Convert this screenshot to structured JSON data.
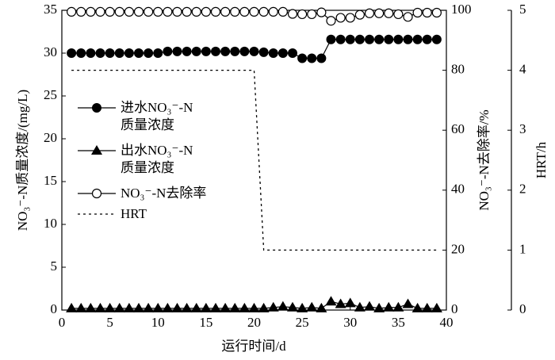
{
  "chart_data": {
    "type": "line",
    "x_label": "运行时间/d",
    "y_label": "NO₃⁻-N质量浓度/(mg/L)",
    "y2_label": "NO₃⁻-N去除率/%",
    "y3_label": "HRT/h",
    "x": [
      1,
      2,
      3,
      4,
      5,
      6,
      7,
      8,
      9,
      10,
      11,
      12,
      13,
      14,
      15,
      16,
      17,
      18,
      19,
      20,
      21,
      22,
      23,
      24,
      25,
      26,
      27,
      28,
      29,
      30,
      31,
      32,
      33,
      34,
      35,
      36,
      37,
      38,
      39
    ],
    "xlim": [
      0,
      40
    ],
    "xticks": [
      0,
      5,
      10,
      15,
      20,
      25,
      30,
      35,
      40
    ],
    "ylim": [
      0,
      35
    ],
    "yticks": [
      0,
      5,
      10,
      15,
      20,
      25,
      30,
      35
    ],
    "y2lim": [
      0,
      100
    ],
    "y2ticks": [
      0,
      20,
      40,
      60,
      80,
      100
    ],
    "y3lim": [
      0,
      5
    ],
    "y3ticks": [
      0,
      1,
      2,
      3,
      4,
      5
    ],
    "series": [
      {
        "name": "进水NO₃⁻-N\n质量浓度",
        "color": "#000000",
        "marker": "filled-circle",
        "values": [
          30.0,
          30.0,
          30.0,
          30.0,
          30.0,
          30.0,
          30.0,
          30.0,
          30.0,
          30.0,
          30.2,
          30.2,
          30.2,
          30.2,
          30.2,
          30.2,
          30.2,
          30.2,
          30.2,
          30.2,
          30.1,
          30.0,
          30.0,
          30.0,
          29.4,
          29.4,
          29.4,
          31.6,
          31.6,
          31.6,
          31.6,
          31.6,
          31.6,
          31.6,
          31.6,
          31.6,
          31.6,
          31.6,
          31.6
        ]
      },
      {
        "name": "出水NO₃⁻-N\n质量浓度",
        "color": "#000000",
        "marker": "triangle",
        "values": [
          0.2,
          0.2,
          0.2,
          0.2,
          0.2,
          0.2,
          0.2,
          0.2,
          0.2,
          0.2,
          0.2,
          0.2,
          0.2,
          0.2,
          0.2,
          0.2,
          0.2,
          0.2,
          0.2,
          0.2,
          0.2,
          0.3,
          0.4,
          0.3,
          0.2,
          0.3,
          0.2,
          1.0,
          0.7,
          0.8,
          0.3,
          0.4,
          0.2,
          0.3,
          0.3,
          0.7,
          0.2,
          0.2,
          0.2
        ]
      },
      {
        "name": "NO₃⁻-N去除率",
        "color": "#000000",
        "marker": "open-circle",
        "axis": "y2",
        "values": [
          99.5,
          99.5,
          99.5,
          99.5,
          99.5,
          99.5,
          99.5,
          99.5,
          99.5,
          99.5,
          99.5,
          99.5,
          99.5,
          99.5,
          99.5,
          99.5,
          99.5,
          99.5,
          99.5,
          99.5,
          99.5,
          99.5,
          99.5,
          98.8,
          98.7,
          98.7,
          99.3,
          96.5,
          97.5,
          97.5,
          98.5,
          99,
          99,
          99,
          98.7,
          97.8,
          99.2,
          99.2,
          99.2
        ]
      },
      {
        "name": "HRT",
        "color": "#000000",
        "marker": "dashed",
        "axis": "y3",
        "x": [
          1,
          20,
          21,
          39
        ],
        "values": [
          4,
          4,
          1,
          1
        ]
      }
    ]
  }
}
